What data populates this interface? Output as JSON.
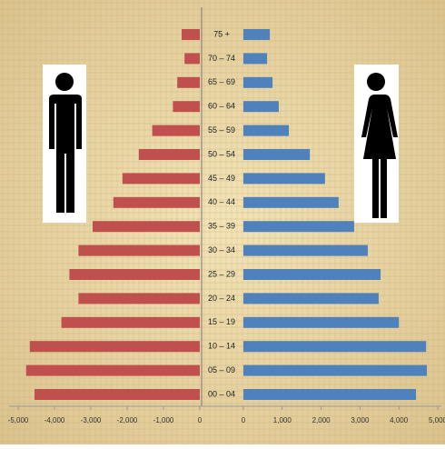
{
  "chart_data": {
    "type": "pyramid",
    "categories": [
      "75 +",
      "70 – 74",
      "65 – 69",
      "60 – 64",
      "55 – 59",
      "50 – 54",
      "45 – 49",
      "40 – 44",
      "35 – 39",
      "30 – 34",
      "25 – 29",
      "20 – 24",
      "15 – 19",
      "10 – 14",
      "05 – 09",
      "00 – 04"
    ],
    "series": [
      {
        "color": "#c0504d",
        "axis": "x",
        "values": [
          -500,
          -420,
          -620,
          -740,
          -1310,
          -1680,
          -2130,
          -2380,
          -2950,
          -3340,
          -3590,
          -3340,
          -3810,
          -4680,
          -4780,
          -4550
        ]
      },
      {
        "color": "#4f81bd",
        "axis": "x2",
        "values": [
          680,
          610,
          750,
          910,
          1170,
          1710,
          2100,
          2450,
          2850,
          3200,
          3530,
          3480,
          4000,
          4700,
          4720,
          4440
        ]
      }
    ],
    "xlim": [
      -5000,
      0
    ],
    "xticks": [
      {
        "value": -5000,
        "label": "-5,000"
      },
      {
        "value": -4000,
        "label": "-4,000"
      },
      {
        "value": -3000,
        "label": "-3,000"
      },
      {
        "value": -2000,
        "label": "-2,000"
      },
      {
        "value": -1000,
        "label": "-1,000"
      },
      0
    ],
    "x2lim": [
      0,
      5000
    ],
    "x2ticks": [
      0,
      {
        "value": 1000,
        "label": "1,000"
      },
      {
        "value": 2000,
        "label": "2,000"
      },
      {
        "value": 3000,
        "label": "3,000"
      },
      {
        "value": 4000,
        "label": "4,000"
      },
      {
        "value": 5000,
        "label": "5,000"
      }
    ]
  }
}
